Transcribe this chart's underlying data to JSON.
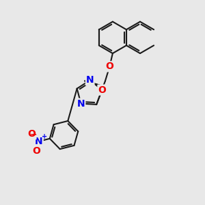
{
  "bg_color": "#e8e8e8",
  "bond_color": "#1a1a1a",
  "bond_width": 1.5,
  "atom_colors": {
    "N": "#0000ee",
    "O": "#ee0000",
    "C": "#1a1a1a"
  },
  "font_size_atom": 10,
  "fig_size": [
    3.0,
    3.0
  ],
  "dpi": 100
}
